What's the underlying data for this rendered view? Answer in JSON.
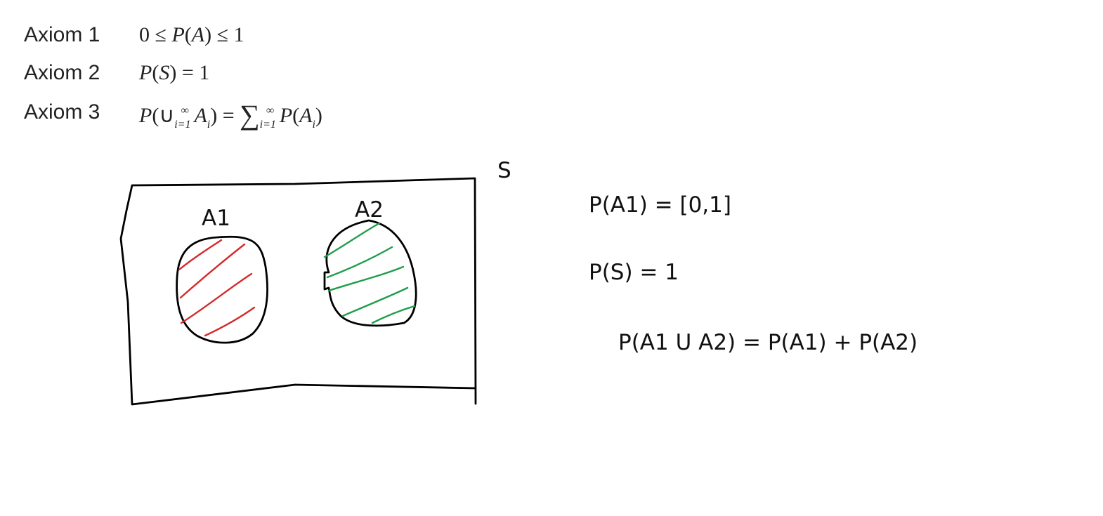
{
  "axioms": [
    {
      "label": "Axiom 1",
      "formula": "0 ≤ P(A) ≤ 1"
    },
    {
      "label": "Axiom 2",
      "formula": "P(S) = 1"
    },
    {
      "label": "Axiom 3",
      "formula": "P(∪∞i=1 Ai) = ∑∞i=1 P(Ai)"
    }
  ],
  "diagram": {
    "sample_space_label": "S",
    "event_a1_label": "A1",
    "event_a2_label": "A2",
    "colors": {
      "outline": "#000000",
      "a1_hatch": "#d42a2a",
      "a2_hatch": "#1f9e4a"
    }
  },
  "equations": {
    "eq1": "P(A1) = [0,1]",
    "eq2": "P(S) = 1",
    "eq3": "P(A1 U A2) = P(A1) + P(A2)"
  }
}
